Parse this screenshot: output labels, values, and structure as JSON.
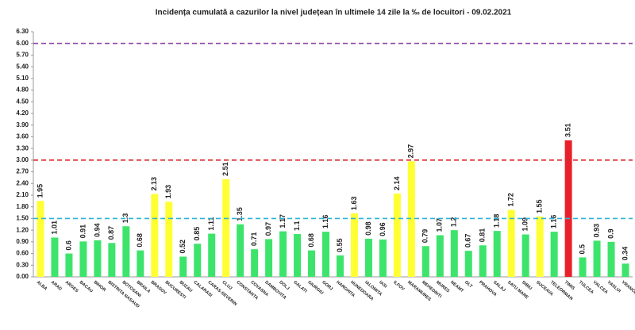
{
  "chart_data": {
    "type": "bar",
    "title": "Incidența cumulată a cazurilor la nivel județean în ultimele 14 zile   la ‰ de locuitori  - 09.02.2021",
    "categories": [
      "ALBA",
      "ARAD",
      "ARGES",
      "BACAU",
      "BIHOR",
      "BISTRITA NASAUD",
      "BOTOSANI",
      "BRAILA",
      "BRASOV",
      "BUCURESTI",
      "BUZAU",
      "CALARASI",
      "CARAS-SEVERIN",
      "CLUJ",
      "CONSTANTA",
      "COVASNA",
      "DAMBOVITA",
      "DOLJ",
      "GALATI",
      "GIURGIU",
      "GORJ",
      "HARGHITA",
      "HUNEDOARA",
      "IALOMITA",
      "IASI",
      "ILFOV",
      "MARAMURES",
      "MEHEDINTI",
      "MURES",
      "NEAMT",
      "OLT",
      "PRAHOVA",
      "SALAJ",
      "SATU MARE",
      "SIBIU",
      "SUCEAVA",
      "TELEORMAN",
      "TIMIS",
      "TULCEA",
      "VALCEA",
      "VASLUI",
      "VRANCEA"
    ],
    "values": [
      1.95,
      1.01,
      0.6,
      0.91,
      0.94,
      0.87,
      1.3,
      0.68,
      2.13,
      1.93,
      0.52,
      0.85,
      1.11,
      2.51,
      1.35,
      0.71,
      0.97,
      1.17,
      1.1,
      0.68,
      1.16,
      0.55,
      1.63,
      0.98,
      0.96,
      2.14,
      2.97,
      0.79,
      1.07,
      1.2,
      0.67,
      0.81,
      1.18,
      1.72,
      1.09,
      1.55,
      1.16,
      3.51,
      0.5,
      0.93,
      0.9,
      0.34
    ],
    "colors": [
      "#ffff33",
      "#3de46b",
      "#3de46b",
      "#3de46b",
      "#3de46b",
      "#3de46b",
      "#3de46b",
      "#3de46b",
      "#ffff33",
      "#ffff33",
      "#3de46b",
      "#3de46b",
      "#3de46b",
      "#ffff33",
      "#3de46b",
      "#3de46b",
      "#3de46b",
      "#3de46b",
      "#3de46b",
      "#3de46b",
      "#3de46b",
      "#3de46b",
      "#ffff33",
      "#3de46b",
      "#3de46b",
      "#ffff33",
      "#ffff33",
      "#3de46b",
      "#3de46b",
      "#3de46b",
      "#3de46b",
      "#3de46b",
      "#3de46b",
      "#ffff33",
      "#3de46b",
      "#ffff33",
      "#3de46b",
      "#e8202a",
      "#3de46b",
      "#3de46b",
      "#3de46b",
      "#3de46b"
    ],
    "reference_lines": [
      {
        "value": 1.5,
        "color": "#27b5d8"
      },
      {
        "value": 3.0,
        "color": "#d9262a"
      },
      {
        "value": 6.0,
        "color": "#8e3fa8"
      }
    ],
    "ylim": [
      0,
      6.3
    ],
    "yticks": [
      {
        "value": 0,
        "label": "0.00"
      },
      {
        "value": 0.3,
        "label": "0.30"
      },
      {
        "value": 0.6,
        "label": "0.60"
      },
      {
        "value": 0.9,
        "label": "0.90"
      },
      {
        "value": 1.2,
        "label": "1.20"
      },
      {
        "value": 1.5,
        "label": "1.50"
      },
      {
        "value": 1.8,
        "label": "1.80"
      },
      {
        "value": 2.1,
        "label": "2.10"
      },
      {
        "value": 2.4,
        "label": "2.40"
      },
      {
        "value": 2.7,
        "label": "2.70"
      },
      {
        "value": 3.0,
        "label": "3.00"
      },
      {
        "value": 3.3,
        "label": "3.30"
      },
      {
        "value": 3.6,
        "label": "3.60"
      },
      {
        "value": 3.9,
        "label": "3.90"
      },
      {
        "value": 4.2,
        "label": "4.20"
      },
      {
        "value": 4.5,
        "label": "4.50"
      },
      {
        "value": 4.8,
        "label": "4.80"
      },
      {
        "value": 5.1,
        "label": "5.10"
      },
      {
        "value": 5.4,
        "label": "5.40"
      },
      {
        "value": 5.7,
        "label": "5.70"
      },
      {
        "value": 6.0,
        "label": "6.00"
      },
      {
        "value": 6.3,
        "label": "6.30"
      }
    ],
    "grid": false
  }
}
